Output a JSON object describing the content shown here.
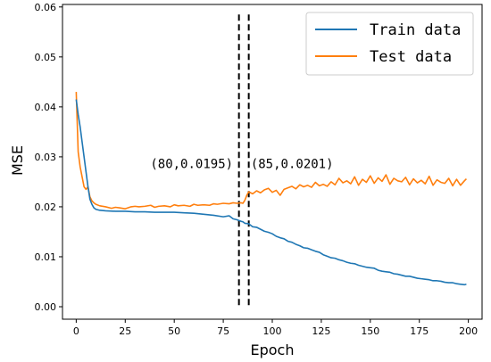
{
  "chart_data": {
    "type": "line",
    "title": "",
    "xlabel": "Epoch",
    "ylabel": "MSE",
    "xlim": [
      -7,
      207
    ],
    "ylim": [
      -0.0025,
      0.0605
    ],
    "xticks": [
      0,
      25,
      50,
      75,
      100,
      125,
      150,
      175,
      200
    ],
    "xtick_labels": [
      "0",
      "25",
      "50",
      "75",
      "100",
      "125",
      "150",
      "175",
      "200"
    ],
    "yticks": [
      0.0,
      0.01,
      0.02,
      0.03,
      0.04,
      0.05,
      0.06
    ],
    "ytick_labels": [
      "0.00",
      "0.01",
      "0.02",
      "0.03",
      "0.04",
      "0.05",
      "0.06"
    ],
    "grid": false,
    "legend_position": "top-right",
    "series": [
      {
        "name": "Train data",
        "color": "#1f77b4",
        "x": [
          0,
          1,
          2,
          3,
          4,
          5,
          6,
          7,
          8,
          9,
          10,
          12,
          15,
          20,
          25,
          30,
          35,
          40,
          45,
          50,
          55,
          60,
          65,
          70,
          75,
          78,
          80,
          82,
          84,
          85,
          86,
          88,
          90,
          92,
          94,
          96,
          98,
          100,
          102,
          104,
          106,
          108,
          110,
          112,
          114,
          116,
          118,
          120,
          122,
          124,
          126,
          128,
          130,
          132,
          134,
          136,
          138,
          140,
          142,
          144,
          146,
          148,
          150,
          152,
          154,
          156,
          158,
          160,
          162,
          164,
          166,
          168,
          170,
          172,
          174,
          176,
          178,
          180,
          182,
          184,
          186,
          188,
          190,
          192,
          194,
          196,
          198,
          199
        ],
        "y": [
          0.0415,
          0.0385,
          0.036,
          0.033,
          0.03,
          0.027,
          0.024,
          0.0215,
          0.0205,
          0.0198,
          0.0195,
          0.0193,
          0.0192,
          0.0191,
          0.0191,
          0.019,
          0.019,
          0.0189,
          0.0189,
          0.0189,
          0.0188,
          0.0187,
          0.0185,
          0.0183,
          0.018,
          0.0182,
          0.0176,
          0.0174,
          0.0171,
          0.017,
          0.0167,
          0.0166,
          0.016,
          0.0159,
          0.0155,
          0.0151,
          0.0149,
          0.0146,
          0.0141,
          0.0138,
          0.0136,
          0.0131,
          0.0129,
          0.0125,
          0.0122,
          0.0118,
          0.0117,
          0.0114,
          0.0111,
          0.0109,
          0.0104,
          0.0101,
          0.0098,
          0.0097,
          0.0094,
          0.0092,
          0.0089,
          0.0087,
          0.0086,
          0.0083,
          0.0081,
          0.0079,
          0.0078,
          0.0077,
          0.0073,
          0.0071,
          0.007,
          0.0069,
          0.0066,
          0.0065,
          0.0063,
          0.0061,
          0.0061,
          0.0059,
          0.0057,
          0.0056,
          0.0055,
          0.0054,
          0.0052,
          0.0052,
          0.0051,
          0.0049,
          0.0048,
          0.0048,
          0.0046,
          0.0045,
          0.0044,
          0.0045
        ]
      },
      {
        "name": "Test data",
        "color": "#ff7f0e",
        "x": [
          0,
          1,
          2,
          3,
          4,
          5,
          6,
          7,
          8,
          9,
          10,
          12,
          15,
          18,
          20,
          22,
          25,
          28,
          30,
          32,
          35,
          38,
          40,
          42,
          45,
          48,
          50,
          52,
          55,
          58,
          60,
          62,
          65,
          68,
          70,
          72,
          75,
          78,
          80,
          82,
          84,
          85,
          86,
          87,
          88,
          90,
          92,
          94,
          96,
          98,
          100,
          102,
          104,
          106,
          108,
          110,
          112,
          114,
          116,
          118,
          120,
          122,
          124,
          126,
          128,
          130,
          132,
          134,
          136,
          138,
          140,
          142,
          144,
          146,
          148,
          150,
          152,
          154,
          156,
          158,
          160,
          162,
          164,
          166,
          168,
          170,
          172,
          174,
          176,
          178,
          180,
          182,
          184,
          186,
          188,
          190,
          192,
          194,
          196,
          198,
          199
        ],
        "y": [
          0.043,
          0.031,
          0.028,
          0.026,
          0.024,
          0.0235,
          0.024,
          0.022,
          0.0212,
          0.0208,
          0.0205,
          0.0202,
          0.02,
          0.0197,
          0.0199,
          0.0198,
          0.0196,
          0.02,
          0.0201,
          0.02,
          0.0201,
          0.0203,
          0.0199,
          0.0201,
          0.0202,
          0.02,
          0.0204,
          0.0202,
          0.0203,
          0.0201,
          0.0205,
          0.0203,
          0.0204,
          0.0203,
          0.0206,
          0.0205,
          0.0207,
          0.0206,
          0.0208,
          0.0207,
          0.0208,
          0.0207,
          0.0213,
          0.0223,
          0.023,
          0.0226,
          0.0232,
          0.0228,
          0.0234,
          0.0237,
          0.0229,
          0.0233,
          0.0223,
          0.0235,
          0.0238,
          0.0241,
          0.0236,
          0.0244,
          0.024,
          0.0243,
          0.0239,
          0.0249,
          0.0242,
          0.0245,
          0.0241,
          0.025,
          0.0244,
          0.0257,
          0.0248,
          0.0252,
          0.0246,
          0.026,
          0.0243,
          0.0255,
          0.0249,
          0.0262,
          0.0247,
          0.0258,
          0.0251,
          0.0264,
          0.0245,
          0.0257,
          0.0252,
          0.025,
          0.0259,
          0.0244,
          0.0256,
          0.0248,
          0.0253,
          0.0246,
          0.0261,
          0.0243,
          0.0254,
          0.0249,
          0.0247,
          0.0257,
          0.0242,
          0.0255,
          0.0243,
          0.0252,
          0.0256
        ]
      }
    ],
    "vlines": [
      {
        "x": 83,
        "style": "dashed",
        "color": "#000000"
      },
      {
        "x": 88,
        "style": "dashed",
        "color": "#000000"
      }
    ],
    "annotations": [
      {
        "text": "(80,0.0195)",
        "x": 80,
        "y": 0.0286,
        "anchor": "end"
      },
      {
        "text": "(85,0.0201)",
        "x": 89,
        "y": 0.0286,
        "anchor": "start"
      }
    ]
  }
}
